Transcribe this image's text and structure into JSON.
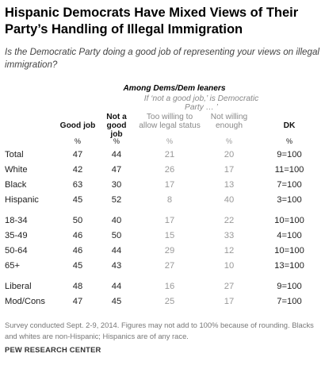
{
  "title": "Hispanic Democrats Have Mixed Views of Their Party’s Handling of Illegal Immigration",
  "subtitle": "Is the Democratic Party doing a good job of representing your views on illegal immigration?",
  "group_header": "Among Dems/Dem leaners",
  "sub_header": "If ‘not a good job,’ is Democratic Party … ’",
  "columns": [
    {
      "key": "good",
      "label": "Good job",
      "unit": "%"
    },
    {
      "key": "not_good",
      "label": "Not a good job",
      "unit": "%"
    },
    {
      "key": "too_willing",
      "label": "Too willing to allow legal status",
      "unit": "%"
    },
    {
      "key": "not_willing",
      "label": "Not willing enough",
      "unit": "%"
    },
    {
      "key": "dk",
      "label": "DK",
      "unit": "%"
    }
  ],
  "chart_data": {
    "type": "table",
    "title": "Hispanic Democrats Have Mixed Views of Their Party’s Handling of Illegal Immigration",
    "columns": [
      "Good job",
      "Not a good job",
      "Too willing to allow legal status",
      "Not willing enough",
      "DK"
    ],
    "rows": [
      {
        "label": "Total",
        "values": [
          "47",
          "44",
          "21",
          "20",
          "9=100"
        ]
      },
      {
        "label": "White",
        "values": [
          "42",
          "47",
          "26",
          "17",
          "11=100"
        ]
      },
      {
        "label": "Black",
        "values": [
          "63",
          "30",
          "17",
          "13",
          "7=100"
        ]
      },
      {
        "label": "Hispanic",
        "values": [
          "45",
          "52",
          "8",
          "40",
          "3=100"
        ]
      },
      {
        "label": "18-34",
        "values": [
          "50",
          "40",
          "17",
          "22",
          "10=100"
        ]
      },
      {
        "label": "35-49",
        "values": [
          "46",
          "50",
          "15",
          "33",
          "4=100"
        ]
      },
      {
        "label": "50-64",
        "values": [
          "46",
          "44",
          "29",
          "12",
          "10=100"
        ]
      },
      {
        "label": "65+",
        "values": [
          "45",
          "43",
          "27",
          "10",
          "13=100"
        ]
      },
      {
        "label": "Liberal",
        "values": [
          "48",
          "44",
          "16",
          "27",
          "9=100"
        ]
      },
      {
        "label": "Mod/Cons",
        "values": [
          "47",
          "45",
          "25",
          "17",
          "7=100"
        ]
      }
    ]
  },
  "note": "Survey conducted Sept. 2-9, 2014. Figures may not add to 100% because of rounding. Blacks and whites are non-Hispanic; Hispanics are of any race.",
  "source": "PEW RESEARCH CENTER"
}
